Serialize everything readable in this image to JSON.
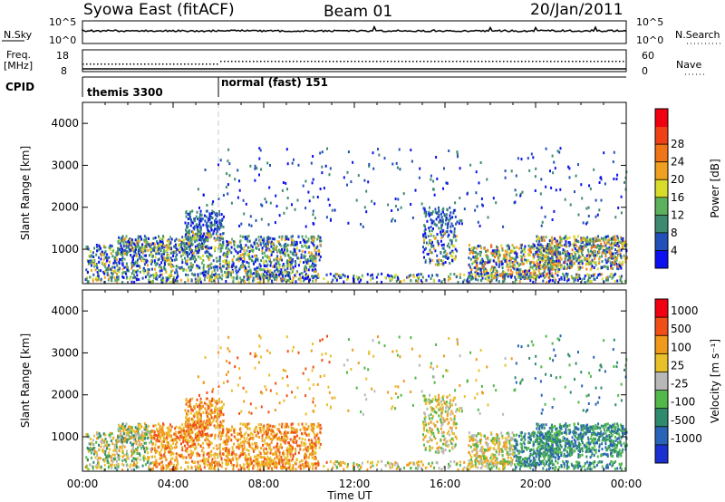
{
  "header": {
    "radar": "Syowa East (fitACF)",
    "beam": "Beam 01",
    "date": "20/Jan/2011"
  },
  "sky_panel": {
    "left_label": "N.Sky",
    "right_label": "N.Search",
    "left_ticks": [
      "10^5",
      "10^0"
    ],
    "right_ticks": [
      "10^5",
      "10^0"
    ]
  },
  "freq_panel": {
    "label_line1": "Freq.",
    "label_line2": "[MHz]",
    "left_ticks": [
      "18",
      "8"
    ],
    "right_label": "Nave",
    "right_ticks": [
      "60",
      "0"
    ]
  },
  "cpid_panel": {
    "label": "CPID",
    "modes": [
      {
        "name": "themis 3300",
        "start": "00:00"
      },
      {
        "name": "normal (fast) 151",
        "start": "06:00"
      }
    ]
  },
  "chart_data": [
    {
      "type": "heatmap",
      "panel": "power",
      "ylabel": "Slant Range [km]",
      "yticks": [
        1000,
        2000,
        3000,
        4000
      ],
      "ylim": [
        180,
        4500
      ],
      "x": [
        "00:00",
        "04:00",
        "08:00",
        "12:00",
        "16:00",
        "20:00",
        "00:00"
      ],
      "xlabel": "Time UT",
      "xlim_hours": [
        0,
        24
      ],
      "colorbar": {
        "title": "Power [dB]",
        "ticks": [
          "4",
          "8",
          "12",
          "16",
          "20",
          "24",
          "28"
        ],
        "colors": [
          "#0a10f0",
          "#2151b8",
          "#3d8a70",
          "#5cb15c",
          "#d8dd2c",
          "#f0a020",
          "#f07418",
          "#f04018",
          "#f00010"
        ]
      }
    },
    {
      "type": "heatmap",
      "panel": "velocity",
      "ylabel": "Slant Range [km]",
      "yticks": [
        1000,
        2000,
        3000,
        4000
      ],
      "ylim": [
        180,
        4500
      ],
      "x": [
        "00:00",
        "04:00",
        "08:00",
        "12:00",
        "16:00",
        "20:00",
        "00:00"
      ],
      "xlabel": "Time UT",
      "xlim_hours": [
        0,
        24
      ],
      "colorbar": {
        "title": "Velocity [m s⁻¹]",
        "ticks": [
          "1000",
          "500",
          "100",
          "25",
          "-25",
          "-100",
          "-500",
          "-1000"
        ],
        "colors": [
          "#1a30d0",
          "#2a64b8",
          "#2f8a6e",
          "#52b84a",
          "#b8b8b8",
          "#e8c02a",
          "#f09a1c",
          "#f05018",
          "#f00010"
        ]
      }
    }
  ]
}
